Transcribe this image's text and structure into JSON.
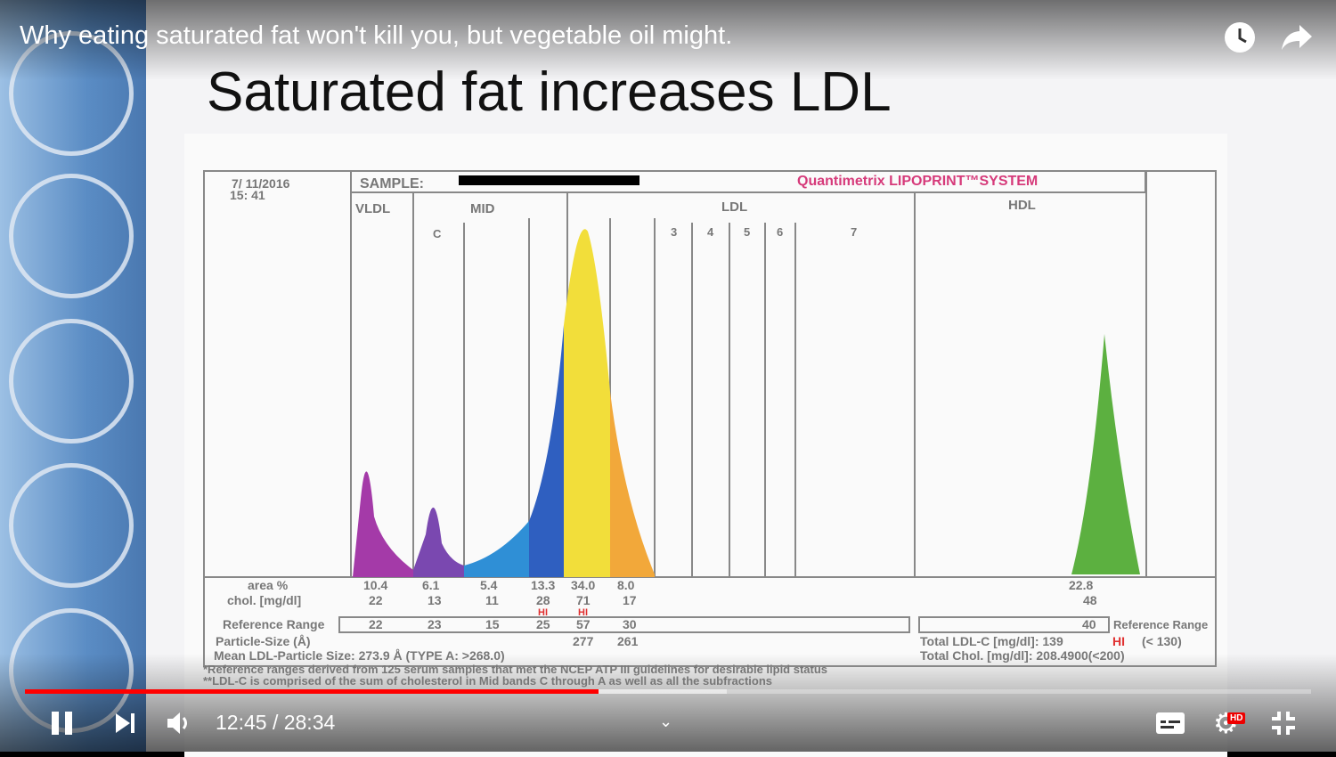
{
  "player": {
    "video_title": "Why eating saturated fat won't kill you, but vegetable oil might.",
    "current_time": "12:45",
    "duration": "28:34",
    "time_display": "12:45 / 28:34",
    "progress_percent": 44.6,
    "buffered_percent": 54.6,
    "hd_badge": "HD",
    "accent": "#ff0000",
    "icons": {
      "watch_later": "clock-icon",
      "share": "share-arrow-icon",
      "pause": "pause-icon",
      "next": "skip-next-icon",
      "volume": "volume-icon",
      "captions": "subtitles-icon",
      "settings": "gear-icon",
      "exit_fullscreen": "exit-fullscreen-icon",
      "chevron": "chevron-down-icon"
    }
  },
  "slide": {
    "title": "Saturated fat increases LDL",
    "report": {
      "date": "7/ 11/2016",
      "time": "15: 41",
      "sample_label": "SAMPLE:",
      "system": "Quantimetrix LIPOPRINT™SYSTEM",
      "sections": [
        "VLDL",
        "MID",
        "LDL",
        "HDL"
      ],
      "bands": [
        "C",
        "3",
        "4",
        "5",
        "6",
        "7"
      ],
      "rows": {
        "area_label": "area %",
        "area": [
          "10.4",
          "6.1",
          "5.4",
          "13.3",
          "34.0",
          "8.0"
        ],
        "hdl_area": "22.8",
        "chol_label": "chol. [mg/dl]",
        "chol": [
          "22",
          "13",
          "11",
          "28",
          "71",
          "17"
        ],
        "hdl_chol": "48",
        "hi": "HI",
        "ref_label": "Reference Range",
        "ref": [
          "22",
          "23",
          "15",
          "25",
          "57",
          "30"
        ],
        "hdl_ref": "40",
        "psize_label": "Particle-Size (Å)",
        "psize": [
          "277",
          "261"
        ],
        "mean": "Mean LDL-Particle Size:   273.9 Å   (TYPE A: >268.0)",
        "total_ldl": "Total LDL-C [mg/dl]:  139",
        "total_ldl_hi": "HI",
        "total_ldl_ref": "(< 130)",
        "total_chol": "Total Chol. [mg/dl]:  208.4900(<200)",
        "foot1": "*Reference ranges derived from 125 serum samples that met the NCEP ATP III guidelines for desirable lipid status",
        "foot2": "**LDL-C is comprised of the sum of cholesterol in Mid bands C through A as well as all the subfractions"
      }
    }
  },
  "colors": {
    "vldl": "#a43aa8",
    "midc": "#7a48b0",
    "midb": "#2f8fd6",
    "lp1": "#2f5fc0",
    "lp2": "#f2de3a",
    "lp3": "#f2a83a",
    "hdl": "#5cb040",
    "brand": "#d63a7a"
  }
}
